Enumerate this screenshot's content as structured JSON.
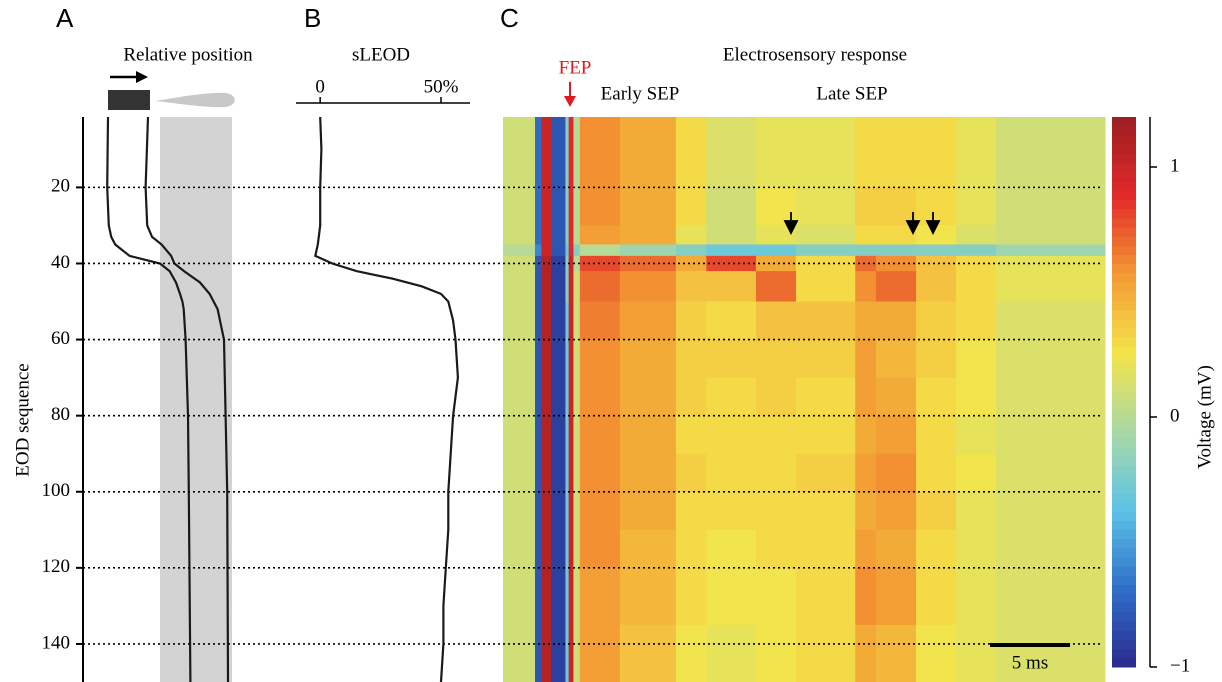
{
  "chart_data": [
    {
      "type": "line",
      "panel": "A",
      "title": "Relative position",
      "ylabel": "EOD sequence",
      "ylim": [
        1.5,
        150
      ],
      "yticks": [
        20,
        40,
        60,
        80,
        100,
        120,
        140
      ],
      "grid": true,
      "xlim": [
        0,
        100
      ],
      "y": [
        1.5,
        20,
        30,
        33,
        35,
        38,
        40,
        42,
        45,
        48,
        50,
        52,
        60,
        80,
        100,
        150
      ],
      "series": [
        {
          "color": "#1a1a1a",
          "values": [
            17.5,
            17,
            18,
            19.5,
            22,
            31,
            50,
            56,
            60,
            62.5,
            64,
            64.8,
            66,
            67.5,
            68,
            69
          ]
        },
        {
          "color": "#1a1a1a",
          "values": [
            42.5,
            41,
            42,
            45,
            51,
            57,
            59,
            65,
            75,
            81,
            83.5,
            86,
            90,
            91,
            92,
            92.5
          ]
        }
      ]
    },
    {
      "type": "line",
      "panel": "B",
      "title": "sLEOD",
      "ylim": [
        1.5,
        150
      ],
      "xlim": [
        -10,
        62
      ],
      "xticks": [
        0,
        {
          "value": 50,
          "label": "50%"
        }
      ],
      "y": [
        1.5,
        10,
        20,
        30,
        35,
        38,
        40,
        42,
        44,
        46,
        48,
        50,
        55,
        60,
        70,
        80,
        90,
        100,
        110,
        120,
        130,
        140,
        150
      ],
      "series": [
        {
          "color": "#1a1a1a",
          "values": [
            0,
            0.5,
            0,
            0,
            -1,
            -2,
            5,
            15,
            30,
            42,
            50,
            53,
            55,
            56,
            57,
            55,
            54,
            53,
            53,
            52,
            51,
            51,
            50
          ]
        }
      ]
    },
    {
      "type": "heatmap",
      "panel": "C",
      "title": "Electrosensory response",
      "annotations": [
        "FEP",
        "Early SEP",
        "Late SEP"
      ],
      "scale_bar": {
        "value": 5,
        "label": "5 ms"
      },
      "ylim": [
        1.5,
        150
      ],
      "xlim": [
        0,
        37.6
      ],
      "x": [
        0,
        2.0,
        2.4,
        3.0,
        3.9,
        4.1,
        4.4,
        4.8,
        7.3,
        10.8,
        12.7,
        15.8,
        18.3,
        22.0,
        23.3,
        25.8,
        28.3,
        30.8,
        37.6
      ],
      "y": [
        1.5,
        20,
        30,
        35,
        38,
        42,
        50,
        60,
        70,
        80,
        90,
        100,
        110,
        120,
        135,
        150
      ],
      "values": [
        [
          0.1,
          -0.7,
          1.0,
          -0.8,
          -0.2,
          0.9,
          0.0,
          0.6,
          0.5,
          0.3,
          0.15,
          0.2,
          0.2,
          0.3,
          0.3,
          0.3,
          0.2,
          0.1
        ],
        [
          0.1,
          -0.7,
          1.0,
          -0.8,
          -0.2,
          0.9,
          0.0,
          0.6,
          0.5,
          0.3,
          0.1,
          0.25,
          0.2,
          0.35,
          0.35,
          0.3,
          0.2,
          0.1
        ],
        [
          0.1,
          -0.7,
          1.0,
          -0.8,
          -0.2,
          0.9,
          0.0,
          0.55,
          0.5,
          0.2,
          0.1,
          0.2,
          0.15,
          0.3,
          0.3,
          0.25,
          0.15,
          0.1
        ],
        [
          0.0,
          -0.6,
          1.0,
          -0.8,
          -0.3,
          0.9,
          -0.2,
          0.0,
          -0.1,
          -0.2,
          -0.3,
          -0.3,
          -0.2,
          -0.2,
          -0.2,
          -0.2,
          -0.2,
          -0.1
        ],
        [
          0.1,
          -0.8,
          1.1,
          -0.9,
          -0.2,
          1.0,
          0.0,
          0.8,
          0.7,
          0.5,
          0.8,
          0.5,
          0.3,
          0.7,
          0.6,
          0.4,
          0.3,
          0.2
        ],
        [
          0.1,
          -0.8,
          1.1,
          -0.9,
          -0.2,
          1.0,
          0.1,
          0.7,
          0.6,
          0.4,
          0.4,
          0.7,
          0.3,
          0.6,
          0.7,
          0.4,
          0.3,
          0.2
        ],
        [
          0.1,
          -0.8,
          1.1,
          -0.9,
          -0.3,
          1.0,
          0.1,
          0.65,
          0.55,
          0.35,
          0.3,
          0.4,
          0.4,
          0.5,
          0.5,
          0.35,
          0.3,
          0.15
        ],
        [
          0.1,
          -0.8,
          1.1,
          -0.9,
          -0.3,
          1.0,
          0.1,
          0.6,
          0.5,
          0.35,
          0.35,
          0.35,
          0.35,
          0.55,
          0.45,
          0.35,
          0.25,
          0.15
        ],
        [
          0.1,
          -0.8,
          1.1,
          -0.9,
          -0.3,
          1.0,
          0.1,
          0.6,
          0.5,
          0.35,
          0.3,
          0.35,
          0.3,
          0.55,
          0.5,
          0.3,
          0.25,
          0.15
        ],
        [
          0.1,
          -0.8,
          1.1,
          -0.9,
          -0.3,
          1.0,
          0.1,
          0.6,
          0.5,
          0.3,
          0.3,
          0.3,
          0.3,
          0.5,
          0.55,
          0.3,
          0.2,
          0.15
        ],
        [
          0.1,
          -0.8,
          1.1,
          -0.9,
          -0.3,
          1.0,
          0.1,
          0.6,
          0.5,
          0.35,
          0.3,
          0.3,
          0.35,
          0.55,
          0.6,
          0.3,
          0.25,
          0.15
        ],
        [
          0.1,
          -0.8,
          1.1,
          -0.9,
          -0.3,
          1.0,
          0.1,
          0.6,
          0.5,
          0.3,
          0.3,
          0.3,
          0.3,
          0.5,
          0.55,
          0.35,
          0.2,
          0.15
        ],
        [
          0.1,
          -0.8,
          1.1,
          -0.9,
          -0.3,
          1.0,
          0.1,
          0.6,
          0.45,
          0.3,
          0.25,
          0.3,
          0.3,
          0.55,
          0.5,
          0.3,
          0.2,
          0.15
        ],
        [
          0.1,
          -0.8,
          1.1,
          -0.9,
          -0.3,
          1.0,
          0.1,
          0.55,
          0.45,
          0.3,
          0.25,
          0.25,
          0.3,
          0.6,
          0.55,
          0.3,
          0.2,
          0.15
        ],
        [
          0.1,
          -0.8,
          1.1,
          -0.9,
          -0.3,
          1.0,
          0.1,
          0.55,
          0.4,
          0.25,
          0.2,
          0.25,
          0.3,
          0.5,
          0.45,
          0.25,
          0.2,
          0.15
        ]
      ],
      "clim": [
        -1,
        1.2
      ],
      "cticks": [
        {
          "value": -1,
          "label": "−1"
        },
        0,
        1
      ],
      "colorbar_label": "Voltage (mV)"
    }
  ]
}
